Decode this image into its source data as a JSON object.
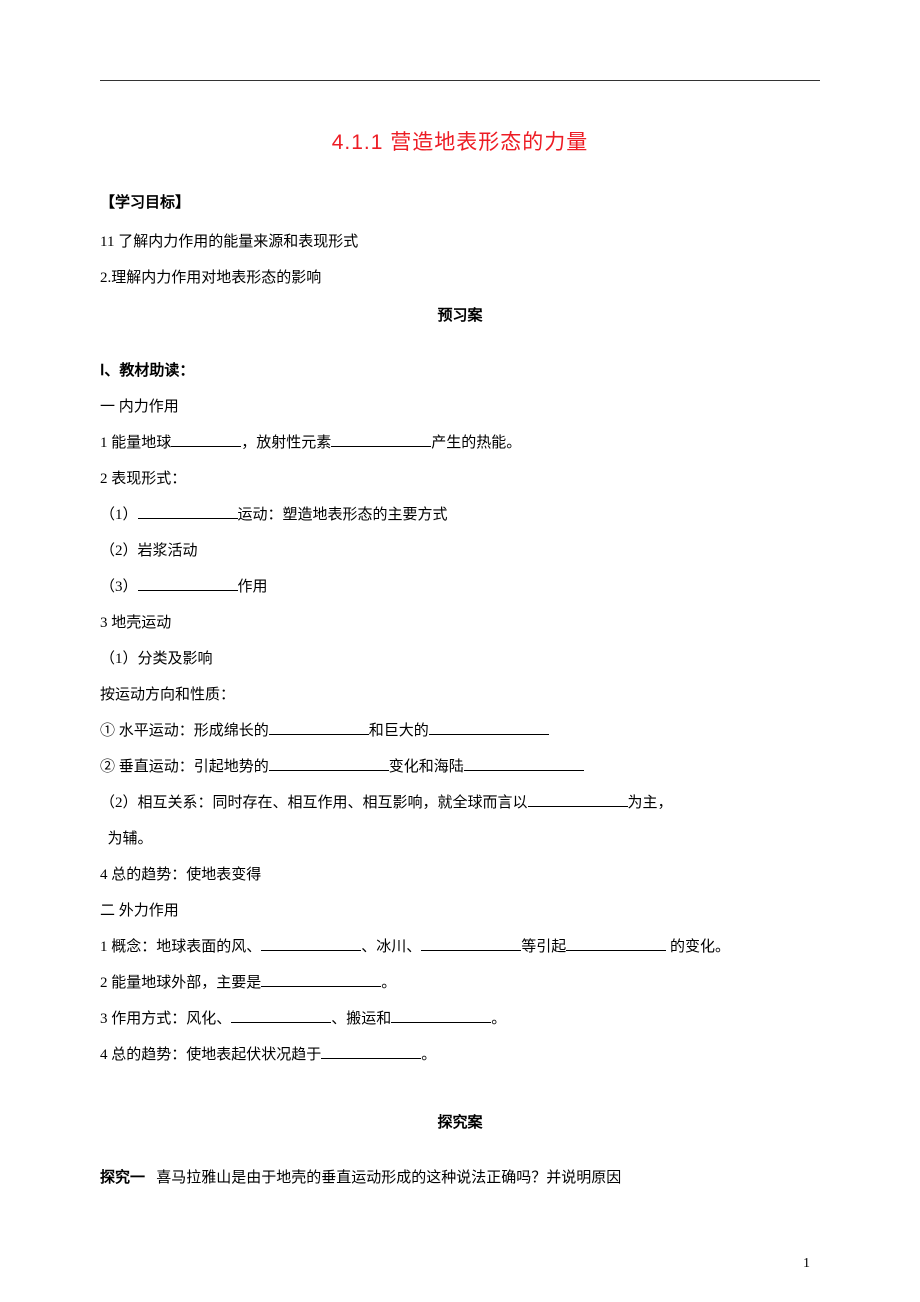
{
  "title": "4.1.1 营造地表形态的力量",
  "objectives_heading": "【学习目标】",
  "objective1": "11 了解内力作用的能量来源和表现形式",
  "objective2": "2.理解内力作用对地表形态的影响",
  "preview_heading": "预习案",
  "section_I": "Ⅰ、教材助读：",
  "sec1_title": "一 内力作用",
  "sec1_1a": "1 能量地球",
  "sec1_1b": "，放射性元素",
  "sec1_1c": "产生的热能。",
  "sec1_2": "2 表现形式：",
  "sec1_2_1a": "（1）",
  "sec1_2_1b": "运动：塑造地表形态的主要方式",
  "sec1_2_2": "（2）岩浆活动",
  "sec1_2_3a": "（3）",
  "sec1_2_3b": "作用",
  "sec1_3": "3 地壳运动",
  "sec1_3_1": "（1）分类及影响",
  "sec1_3_dir": "按运动方向和性质：",
  "sec1_3_h1a": "① 水平运动：形成绵长的",
  "sec1_3_h1b": "和巨大的",
  "sec1_3_v1a": "② 垂直运动：引起地势的",
  "sec1_3_v1b": "变化和海陆",
  "sec1_3_rel_a": "（2）相互关系：同时存在、相互作用、相互影响，就全球而言以",
  "sec1_3_rel_b": "为主，",
  "sec1_3_rel_c": "  为辅。",
  "sec1_4": "4 总的趋势：使地表变得",
  "sec2_title": "二 外力作用",
  "sec2_1a": "1 概念：地球表面的风、",
  "sec2_1b": "、冰川、",
  "sec2_1c": "等引起",
  "sec2_1d": " 的变化。",
  "sec2_2a": "2 能量地球外部，主要是",
  "sec2_2b": "。",
  "sec2_3a": "3 作用方式：风化、",
  "sec2_3b": "、搬运和",
  "sec2_3c": "。",
  "sec2_4a": "4 总的趋势：使地表起伏状况趋于",
  "sec2_4b": "。",
  "explore_heading": "探究案",
  "explore1_label": "探究一",
  "explore1_text": "喜马拉雅山是由于地壳的垂直运动形成的这种说法正确吗？并说明原因",
  "page_number": "1"
}
